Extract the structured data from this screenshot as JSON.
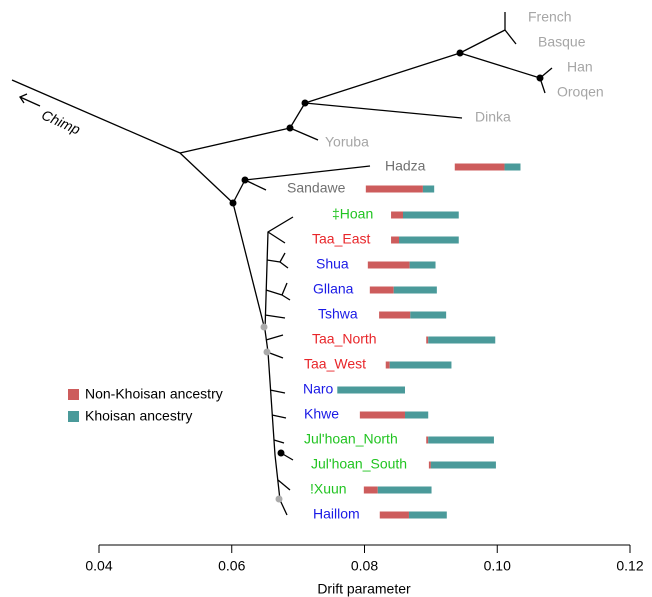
{
  "chart_data": {
    "type": "bar",
    "x_label": "Drift parameter",
    "outgroup_label": "Chimp",
    "tree_labels": [
      "French",
      "Basque",
      "Han",
      "Oroqen",
      "Dinka",
      "Yoruba"
    ],
    "tree_label_color": "#a6a6a6",
    "categories": [
      "Hadza",
      "Sandawe",
      "‡Hoan",
      "Taa_East",
      "Shua",
      "Gllana",
      "Tshwa",
      "Taa_North",
      "Taa_West",
      "Naro",
      "Khwe",
      "Jul'hoan_North",
      "Jul'hoan_South",
      "!Xuun",
      "Haillom"
    ],
    "category_colors": [
      "#707070",
      "#707070",
      "#22c422",
      "#e8262a",
      "#1a1ae6",
      "#1a1ae6",
      "#1a1ae6",
      "#e8262a",
      "#e8262a",
      "#1a1ae6",
      "#1a1ae6",
      "#22c422",
      "#22c422",
      "#22c422",
      "#1a1ae6"
    ],
    "bar_start": [
      0.0936,
      0.0802,
      0.084,
      0.084,
      0.0805,
      0.0808,
      0.0822,
      0.0893,
      0.0832,
      0.0759,
      0.0793,
      0.0893,
      0.0897,
      0.0799,
      0.0823
    ],
    "series": [
      {
        "name": "Non-Khoisan ancestry",
        "color": "#cd5c5c",
        "values": [
          0.0075,
          0.0086,
          0.0018,
          0.0012,
          0.0063,
          0.0036,
          0.0047,
          0.0003,
          0.0006,
          0,
          0.0068,
          0.0003,
          0.0003,
          0.0021,
          0.0044
        ]
      },
      {
        "name": "Khoisan ancestry",
        "color": "#4a9a9a",
        "values": [
          0.0024,
          0.0017,
          0.0084,
          0.009,
          0.0039,
          0.0065,
          0.0054,
          0.0101,
          0.0093,
          0.0102,
          0.0035,
          0.0099,
          0.0098,
          0.0081,
          0.0057
        ]
      }
    ],
    "xlim": [
      0.04,
      0.12
    ],
    "xticks": [
      {
        "value": 0.04,
        "label": "0.04"
      },
      {
        "value": 0.06,
        "label": "0.06"
      },
      {
        "value": 0.08,
        "label": "0.08"
      },
      {
        "value": 0.1,
        "label": "0.10"
      },
      {
        "value": 0.12,
        "label": "0.12"
      }
    ]
  }
}
